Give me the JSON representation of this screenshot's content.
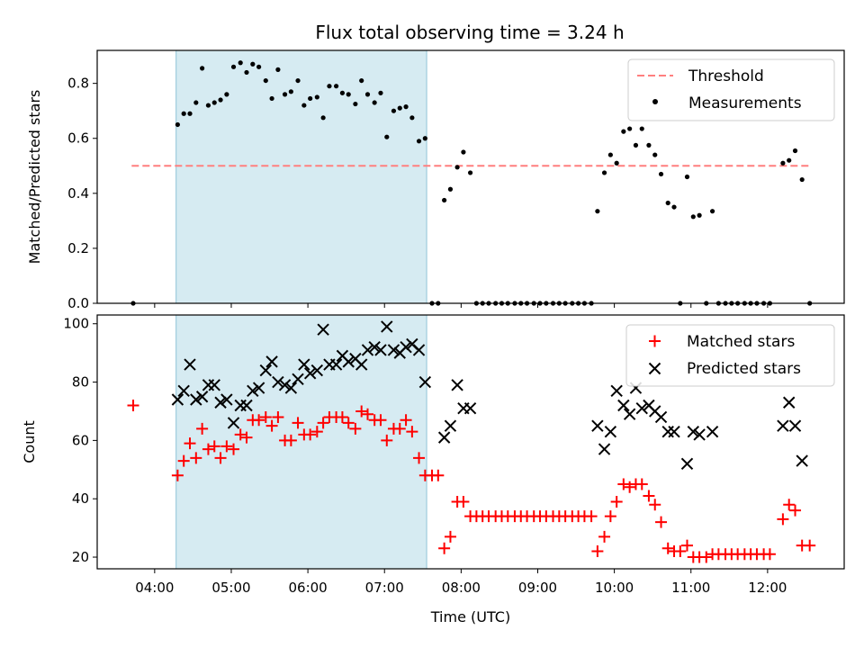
{
  "chart_data": {
    "type": "scatter",
    "title": "Flux total observing time = 3.24 h",
    "xlabel": "Time (UTC)",
    "x_ticks": [
      "04:00",
      "05:00",
      "06:00",
      "07:00",
      "08:00",
      "09:00",
      "10:00",
      "11:00",
      "12:00"
    ],
    "x_range_hours": [
      3.25,
      13.0
    ],
    "highlight_span_hours": [
      4.28,
      7.55
    ],
    "top": {
      "ylabel": "Matched/Predicted stars",
      "ylim": [
        0,
        0.92
      ],
      "yticks": [
        "0.0",
        "0.2",
        "0.4",
        "0.6",
        "0.8"
      ],
      "threshold": {
        "name": "Threshold",
        "value": 0.5,
        "x_span_hours": [
          3.7,
          12.55
        ],
        "color": "#ff7f7f"
      },
      "legend": {
        "position": "upper right",
        "entries": [
          "Threshold",
          "Measurements"
        ]
      },
      "series": [
        {
          "name": "Measurements",
          "color": "#000000",
          "points": [
            [
              3.72,
              0.0
            ],
            [
              4.3,
              0.65
            ],
            [
              4.38,
              0.69
            ],
            [
              4.46,
              0.69
            ],
            [
              4.54,
              0.73
            ],
            [
              4.62,
              0.855
            ],
            [
              4.7,
              0.72
            ],
            [
              4.78,
              0.73
            ],
            [
              4.86,
              0.74
            ],
            [
              4.94,
              0.76
            ],
            [
              5.03,
              0.86
            ],
            [
              5.12,
              0.875
            ],
            [
              5.2,
              0.84
            ],
            [
              5.28,
              0.87
            ],
            [
              5.36,
              0.86
            ],
            [
              5.45,
              0.81
            ],
            [
              5.53,
              0.745
            ],
            [
              5.61,
              0.85
            ],
            [
              5.7,
              0.76
            ],
            [
              5.78,
              0.77
            ],
            [
              5.87,
              0.81
            ],
            [
              5.95,
              0.72
            ],
            [
              6.03,
              0.745
            ],
            [
              6.12,
              0.75
            ],
            [
              6.2,
              0.675
            ],
            [
              6.28,
              0.79
            ],
            [
              6.37,
              0.79
            ],
            [
              6.45,
              0.765
            ],
            [
              6.53,
              0.76
            ],
            [
              6.62,
              0.725
            ],
            [
              6.7,
              0.81
            ],
            [
              6.78,
              0.76
            ],
            [
              6.87,
              0.73
            ],
            [
              6.95,
              0.765
            ],
            [
              7.03,
              0.605
            ],
            [
              7.12,
              0.7
            ],
            [
              7.2,
              0.71
            ],
            [
              7.28,
              0.715
            ],
            [
              7.36,
              0.675
            ],
            [
              7.45,
              0.59
            ],
            [
              7.53,
              0.6
            ],
            [
              7.62,
              0.0
            ],
            [
              7.7,
              0.0
            ],
            [
              7.78,
              0.375
            ],
            [
              7.86,
              0.415
            ],
            [
              7.95,
              0.495
            ],
            [
              8.03,
              0.55
            ],
            [
              8.12,
              0.475
            ],
            [
              8.2,
              0.0
            ],
            [
              8.28,
              0.0
            ],
            [
              8.36,
              0.0
            ],
            [
              8.45,
              0.0
            ],
            [
              8.53,
              0.0
            ],
            [
              8.61,
              0.0
            ],
            [
              8.7,
              0.0
            ],
            [
              8.78,
              0.0
            ],
            [
              8.86,
              0.0
            ],
            [
              8.95,
              0.0
            ],
            [
              9.03,
              0.0
            ],
            [
              9.11,
              0.0
            ],
            [
              9.2,
              0.0
            ],
            [
              9.28,
              0.0
            ],
            [
              9.36,
              0.0
            ],
            [
              9.45,
              0.0
            ],
            [
              9.53,
              0.0
            ],
            [
              9.61,
              0.0
            ],
            [
              9.7,
              0.0
            ],
            [
              9.78,
              0.335
            ],
            [
              9.87,
              0.475
            ],
            [
              9.95,
              0.54
            ],
            [
              10.03,
              0.51
            ],
            [
              10.12,
              0.625
            ],
            [
              10.2,
              0.635
            ],
            [
              10.28,
              0.575
            ],
            [
              10.36,
              0.635
            ],
            [
              10.45,
              0.575
            ],
            [
              10.53,
              0.54
            ],
            [
              10.61,
              0.47
            ],
            [
              10.7,
              0.365
            ],
            [
              10.78,
              0.35
            ],
            [
              10.86,
              0.0
            ],
            [
              10.95,
              0.46
            ],
            [
              11.03,
              0.315
            ],
            [
              11.11,
              0.32
            ],
            [
              11.2,
              0.0
            ],
            [
              11.28,
              0.335
            ],
            [
              11.36,
              0.0
            ],
            [
              11.45,
              0.0
            ],
            [
              11.53,
              0.0
            ],
            [
              11.61,
              0.0
            ],
            [
              11.7,
              0.0
            ],
            [
              11.78,
              0.0
            ],
            [
              11.86,
              0.0
            ],
            [
              11.95,
              0.0
            ],
            [
              12.03,
              0.0
            ],
            [
              12.2,
              0.51
            ],
            [
              12.28,
              0.52
            ],
            [
              12.36,
              0.555
            ],
            [
              12.45,
              0.45
            ],
            [
              12.55,
              0.0
            ]
          ]
        }
      ]
    },
    "bottom": {
      "ylabel": "Count",
      "ylim": [
        16,
        103
      ],
      "yticks": [
        "20",
        "40",
        "60",
        "80",
        "100"
      ],
      "legend": {
        "position": "upper right",
        "entries": [
          "Matched stars",
          "Predicted stars"
        ]
      },
      "series": [
        {
          "name": "Matched stars",
          "marker": "+",
          "color": "#ff0000",
          "points": [
            [
              3.72,
              72
            ],
            [
              4.3,
              48
            ],
            [
              4.38,
              53
            ],
            [
              4.46,
              59
            ],
            [
              4.54,
              54
            ],
            [
              4.62,
              64
            ],
            [
              4.7,
              57
            ],
            [
              4.78,
              58
            ],
            [
              4.86,
              54
            ],
            [
              4.94,
              58
            ],
            [
              5.03,
              57
            ],
            [
              5.12,
              62
            ],
            [
              5.2,
              61
            ],
            [
              5.28,
              67
            ],
            [
              5.36,
              67
            ],
            [
              5.45,
              68
            ],
            [
              5.53,
              65
            ],
            [
              5.61,
              68
            ],
            [
              5.7,
              60
            ],
            [
              5.78,
              60
            ],
            [
              5.87,
              66
            ],
            [
              5.95,
              62
            ],
            [
              6.03,
              62
            ],
            [
              6.12,
              63
            ],
            [
              6.2,
              66
            ],
            [
              6.28,
              68
            ],
            [
              6.37,
              68
            ],
            [
              6.45,
              68
            ],
            [
              6.53,
              66
            ],
            [
              6.62,
              64
            ],
            [
              6.7,
              70
            ],
            [
              6.78,
              69
            ],
            [
              6.87,
              67
            ],
            [
              6.95,
              67
            ],
            [
              7.03,
              60
            ],
            [
              7.12,
              64
            ],
            [
              7.2,
              64
            ],
            [
              7.28,
              67
            ],
            [
              7.36,
              63
            ],
            [
              7.45,
              54
            ],
            [
              7.53,
              48
            ],
            [
              7.62,
              48
            ],
            [
              7.7,
              48
            ],
            [
              7.78,
              23
            ],
            [
              7.86,
              27
            ],
            [
              7.95,
              39
            ],
            [
              8.03,
              39
            ],
            [
              8.12,
              34
            ],
            [
              8.2,
              34
            ],
            [
              8.28,
              34
            ],
            [
              8.36,
              34
            ],
            [
              8.45,
              34
            ],
            [
              8.53,
              34
            ],
            [
              8.61,
              34
            ],
            [
              8.7,
              34
            ],
            [
              8.78,
              34
            ],
            [
              8.86,
              34
            ],
            [
              8.95,
              34
            ],
            [
              9.03,
              34
            ],
            [
              9.11,
              34
            ],
            [
              9.2,
              34
            ],
            [
              9.28,
              34
            ],
            [
              9.36,
              34
            ],
            [
              9.45,
              34
            ],
            [
              9.53,
              34
            ],
            [
              9.61,
              34
            ],
            [
              9.7,
              34
            ],
            [
              9.78,
              22
            ],
            [
              9.87,
              27
            ],
            [
              9.95,
              34
            ],
            [
              10.03,
              39
            ],
            [
              10.12,
              45
            ],
            [
              10.2,
              44
            ],
            [
              10.28,
              45
            ],
            [
              10.36,
              45
            ],
            [
              10.45,
              41
            ],
            [
              10.53,
              38
            ],
            [
              10.61,
              32
            ],
            [
              10.7,
              23
            ],
            [
              10.78,
              22
            ],
            [
              10.86,
              22
            ],
            [
              10.95,
              24
            ],
            [
              11.03,
              20
            ],
            [
              11.11,
              20
            ],
            [
              11.2,
              20
            ],
            [
              11.28,
              21
            ],
            [
              11.36,
              21
            ],
            [
              11.45,
              21
            ],
            [
              11.53,
              21
            ],
            [
              11.61,
              21
            ],
            [
              11.7,
              21
            ],
            [
              11.78,
              21
            ],
            [
              11.86,
              21
            ],
            [
              11.95,
              21
            ],
            [
              12.03,
              21
            ],
            [
              12.2,
              33
            ],
            [
              12.28,
              38
            ],
            [
              12.36,
              36
            ],
            [
              12.45,
              24
            ],
            [
              12.55,
              24
            ]
          ]
        },
        {
          "name": "Predicted stars",
          "marker": "x",
          "color": "#000000",
          "points": [
            [
              4.3,
              74
            ],
            [
              4.38,
              77
            ],
            [
              4.46,
              86
            ],
            [
              4.54,
              74
            ],
            [
              4.62,
              75
            ],
            [
              4.7,
              79
            ],
            [
              4.78,
              79
            ],
            [
              4.86,
              73
            ],
            [
              4.94,
              74
            ],
            [
              5.03,
              66
            ],
            [
              5.12,
              72
            ],
            [
              5.2,
              72
            ],
            [
              5.28,
              77
            ],
            [
              5.36,
              78
            ],
            [
              5.45,
              84
            ],
            [
              5.53,
              87
            ],
            [
              5.61,
              80
            ],
            [
              5.7,
              79
            ],
            [
              5.78,
              78
            ],
            [
              5.87,
              81
            ],
            [
              5.95,
              86
            ],
            [
              6.03,
              83
            ],
            [
              6.12,
              84
            ],
            [
              6.2,
              98
            ],
            [
              6.28,
              86
            ],
            [
              6.37,
              86
            ],
            [
              6.45,
              89
            ],
            [
              6.53,
              87
            ],
            [
              6.62,
              88
            ],
            [
              6.7,
              86
            ],
            [
              6.78,
              91
            ],
            [
              6.87,
              92
            ],
            [
              6.95,
              91
            ],
            [
              7.03,
              99
            ],
            [
              7.12,
              91
            ],
            [
              7.2,
              90
            ],
            [
              7.28,
              92
            ],
            [
              7.36,
              93
            ],
            [
              7.45,
              91
            ],
            [
              7.53,
              80
            ],
            [
              7.78,
              61
            ],
            [
              7.86,
              65
            ],
            [
              7.95,
              79
            ],
            [
              8.03,
              71
            ],
            [
              8.12,
              71
            ],
            [
              9.78,
              65
            ],
            [
              9.87,
              57
            ],
            [
              9.95,
              63
            ],
            [
              10.03,
              77
            ],
            [
              10.12,
              72
            ],
            [
              10.2,
              69
            ],
            [
              10.28,
              78
            ],
            [
              10.36,
              71
            ],
            [
              10.45,
              72
            ],
            [
              10.53,
              70
            ],
            [
              10.61,
              68
            ],
            [
              10.7,
              63
            ],
            [
              10.78,
              63
            ],
            [
              10.95,
              52
            ],
            [
              11.03,
              63
            ],
            [
              11.11,
              62
            ],
            [
              11.28,
              63
            ],
            [
              12.2,
              65
            ],
            [
              12.28,
              73
            ],
            [
              12.36,
              65
            ],
            [
              12.45,
              53
            ]
          ]
        }
      ]
    }
  }
}
